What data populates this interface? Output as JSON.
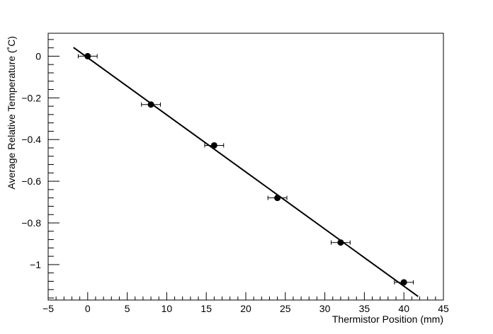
{
  "chart_data": {
    "type": "scatter",
    "title": "",
    "xlabel": "Thermistor Position (mm)",
    "ylabel": "Average Relative Temperature (˚C)",
    "xlim": [
      -5,
      45
    ],
    "ylim": [
      -1.17,
      0.11
    ],
    "x_ticks": [
      -5,
      0,
      5,
      10,
      15,
      20,
      25,
      30,
      35,
      40,
      45
    ],
    "x_tick_labels": [
      "−5",
      "0",
      "5",
      "10",
      "15",
      "20",
      "25",
      "30",
      "35",
      "40",
      "45"
    ],
    "y_ticks": [
      0,
      -0.2,
      -0.4,
      -0.6,
      -0.8,
      -1
    ],
    "y_tick_labels": [
      "0",
      "−0.2",
      "−0.4",
      "−0.6",
      "−0.8",
      "−1"
    ],
    "grid": false,
    "legend": "none",
    "points": [
      {
        "x": 0,
        "y": 0.0,
        "xerr": 1.2
      },
      {
        "x": 8,
        "y": -0.232,
        "xerr": 1.2
      },
      {
        "x": 16,
        "y": -0.428,
        "xerr": 1.2
      },
      {
        "x": 24,
        "y": -0.68,
        "xerr": 1.2
      },
      {
        "x": 32,
        "y": -0.894,
        "xerr": 1.2
      },
      {
        "x": 40,
        "y": -1.085,
        "xerr": 1.2
      }
    ],
    "fit_line": {
      "x": [
        -1.8,
        41.8
      ],
      "y": [
        0.042,
        -1.153
      ]
    },
    "colors": {
      "marker": "#000000",
      "line": "#000000",
      "axis": "#000000"
    }
  }
}
